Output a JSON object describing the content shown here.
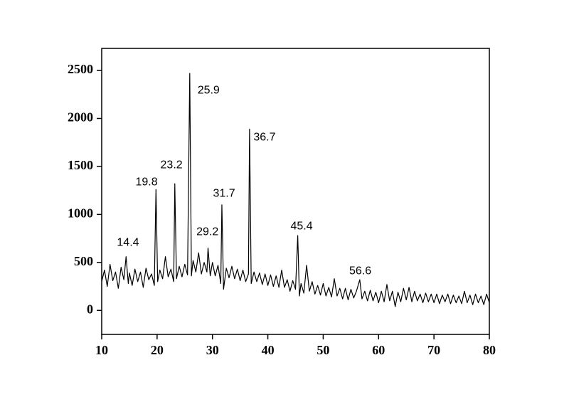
{
  "chart_data": {
    "type": "line",
    "xlim": [
      10,
      80
    ],
    "ylim": [
      -250,
      2730
    ],
    "xticks": [
      10,
      20,
      30,
      40,
      50,
      60,
      70,
      80
    ],
    "yticks": [
      0,
      500,
      1000,
      1500,
      2000,
      2500
    ],
    "color": "#000000",
    "x": [
      10,
      10.5,
      11,
      11.5,
      12,
      12.5,
      13,
      13.5,
      14,
      14.4,
      14.8,
      15,
      15.5,
      16,
      16.5,
      17,
      17.5,
      18,
      18.5,
      19,
      19.5,
      19.8,
      20.1,
      20.5,
      21,
      21.5,
      22,
      22.5,
      23,
      23.2,
      23.5,
      24,
      24.5,
      25,
      25.5,
      25.9,
      26.2,
      26.5,
      27,
      27.5,
      28,
      28.5,
      29,
      29.2,
      29.6,
      30,
      30.5,
      31,
      31.5,
      31.7,
      32,
      32.5,
      33,
      33.5,
      34,
      34.5,
      35,
      35.5,
      36,
      36.5,
      36.7,
      37,
      37.5,
      38,
      38.5,
      39,
      39.5,
      40,
      40.5,
      41,
      41.5,
      42,
      42.5,
      43,
      43.5,
      44,
      44.5,
      45,
      45.4,
      45.7,
      46,
      46.5,
      47,
      47.5,
      48,
      48.5,
      49,
      49.5,
      50,
      50.5,
      51,
      51.5,
      52,
      52.5,
      53,
      53.5,
      54,
      54.5,
      55,
      55.5,
      56,
      56.6,
      57,
      57.5,
      58,
      58.5,
      59,
      59.5,
      60,
      60.5,
      61,
      61.5,
      62,
      62.5,
      63,
      63.5,
      64,
      64.5,
      65,
      65.5,
      66,
      66.5,
      67,
      67.5,
      68,
      68.5,
      69,
      69.5,
      70,
      70.5,
      71,
      71.5,
      72,
      72.5,
      73,
      73.5,
      74,
      74.5,
      75,
      75.5,
      76,
      76.5,
      77,
      77.5,
      78,
      78.5,
      79,
      79.5,
      80
    ],
    "values": [
      300,
      420,
      250,
      480,
      310,
      400,
      230,
      450,
      320,
      560,
      280,
      390,
      260,
      430,
      300,
      400,
      240,
      440,
      320,
      380,
      260,
      1260,
      300,
      420,
      330,
      560,
      350,
      430,
      300,
      1320,
      330,
      460,
      350,
      480,
      370,
      2470,
      360,
      520,
      400,
      600,
      380,
      500,
      400,
      650,
      360,
      500,
      360,
      470,
      280,
      1100,
      220,
      440,
      340,
      460,
      330,
      430,
      310,
      420,
      300,
      380,
      1890,
      280,
      400,
      300,
      390,
      270,
      380,
      260,
      370,
      250,
      360,
      240,
      420,
      240,
      320,
      200,
      310,
      220,
      780,
      150,
      280,
      180,
      470,
      200,
      300,
      170,
      260,
      160,
      280,
      150,
      240,
      140,
      330,
      150,
      230,
      120,
      230,
      110,
      220,
      130,
      200,
      320,
      120,
      200,
      100,
      210,
      100,
      190,
      80,
      200,
      90,
      270,
      100,
      200,
      40,
      190,
      90,
      230,
      110,
      240,
      90,
      200,
      100,
      170,
      80,
      180,
      90,
      170,
      80,
      170,
      70,
      160,
      90,
      170,
      70,
      160,
      80,
      150,
      70,
      200,
      80,
      160,
      60,
      170,
      80,
      150,
      60,
      170,
      80
    ],
    "annotations": [
      {
        "text": "14.4",
        "x": 14.75,
        "y": 705
      },
      {
        "text": "19.8",
        "x": 18.1,
        "y": 1335
      },
      {
        "text": "23.2",
        "x": 22.6,
        "y": 1513
      },
      {
        "text": "25.9",
        "x": 29.3,
        "y": 2292
      },
      {
        "text": "29.2",
        "x": 29.1,
        "y": 816
      },
      {
        "text": "31.7",
        "x": 32.1,
        "y": 1217
      },
      {
        "text": "36.7",
        "x": 39.4,
        "y": 1803
      },
      {
        "text": "45.4",
        "x": 46.1,
        "y": 875
      },
      {
        "text": "56.6",
        "x": 56.7,
        "y": 408
      }
    ]
  }
}
